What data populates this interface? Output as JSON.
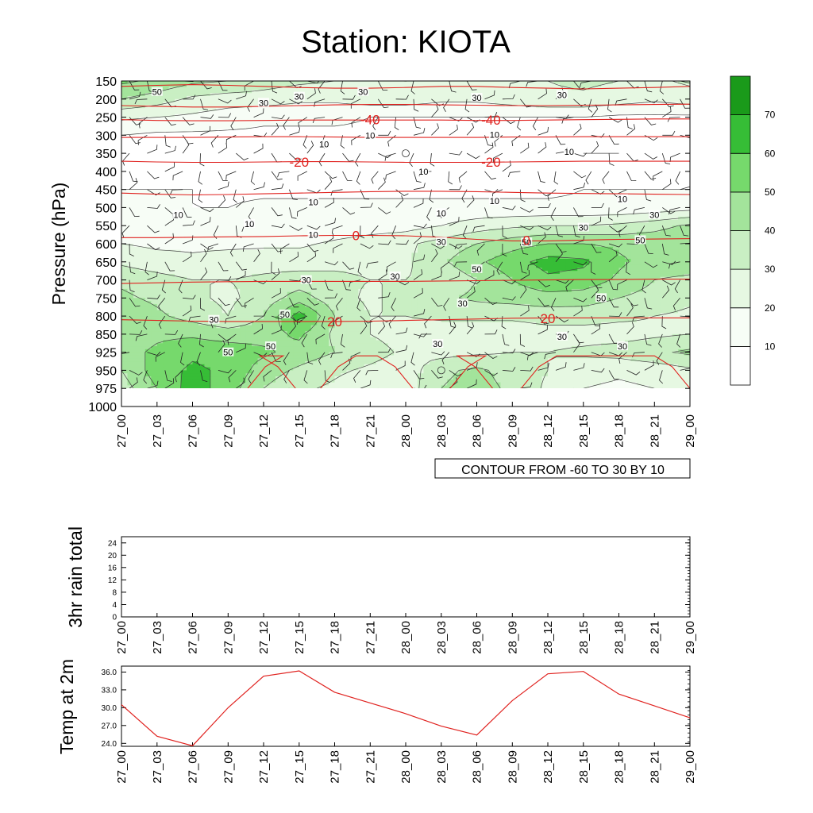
{
  "colors": {
    "fill_levels": [
      "#ffffff",
      "#f7fdf6",
      "#e6f8e2",
      "#c9efc3",
      "#a3e49b",
      "#76d96c",
      "#36bd36",
      "#1a9a1a"
    ],
    "temperature_line": "#e0221f",
    "rh_line": "#000000"
  },
  "chart_data": [
    {
      "type": "contour",
      "title": "Station: KIOTA",
      "ylabel": "Pressure (hPa)",
      "xlabel": "",
      "x_tick_labels": [
        "27_00",
        "27_03",
        "27_06",
        "27_09",
        "27_12",
        "27_15",
        "27_18",
        "27_21",
        "28_00",
        "28_03",
        "28_06",
        "28_09",
        "28_12",
        "28_15",
        "28_18",
        "28_21",
        "29_00"
      ],
      "y_tick_labels": [
        "150",
        "200",
        "250",
        "300",
        "350",
        "400",
        "450",
        "500",
        "550",
        "600",
        "650",
        "700",
        "750",
        "800",
        "850",
        "925",
        "950",
        "975",
        "1000"
      ],
      "fill_field": "relative humidity",
      "fill_levels": [
        10,
        20,
        30,
        40,
        50,
        60,
        70
      ],
      "colorbar_labels": [
        "10",
        "20",
        "30",
        "40",
        "50",
        "60",
        "70"
      ],
      "rh_grid": [
        [
          52,
          48,
          42,
          40,
          35,
          32,
          30,
          30,
          30,
          30,
          28,
          28,
          30,
          32,
          30,
          28,
          32
        ],
        [
          40,
          35,
          28,
          25,
          25,
          22,
          22,
          25,
          25,
          22,
          22,
          25,
          28,
          28,
          25,
          22,
          25
        ],
        [
          22,
          20,
          18,
          15,
          12,
          12,
          12,
          10,
          10,
          10,
          10,
          10,
          10,
          10,
          8,
          8,
          8
        ],
        [
          10,
          8,
          8,
          8,
          8,
          8,
          8,
          8,
          8,
          8,
          8,
          8,
          8,
          8,
          8,
          8,
          8
        ],
        [
          8,
          8,
          8,
          8,
          8,
          8,
          8,
          8,
          8,
          8,
          8,
          8,
          8,
          10,
          10,
          8,
          8
        ],
        [
          8,
          8,
          8,
          8,
          8,
          8,
          8,
          8,
          6,
          6,
          8,
          8,
          8,
          8,
          8,
          8,
          8
        ],
        [
          10,
          10,
          10,
          8,
          8,
          8,
          8,
          8,
          8,
          8,
          8,
          8,
          8,
          10,
          10,
          10,
          10
        ],
        [
          12,
          12,
          10,
          10,
          12,
          12,
          12,
          12,
          12,
          12,
          12,
          12,
          12,
          12,
          12,
          14,
          16
        ],
        [
          15,
          12,
          12,
          12,
          12,
          10,
          12,
          14,
          16,
          20,
          25,
          28,
          30,
          30,
          32,
          36,
          42
        ],
        [
          20,
          18,
          18,
          18,
          18,
          18,
          22,
          26,
          28,
          34,
          40,
          46,
          50,
          50,
          48,
          48,
          50
        ],
        [
          28,
          24,
          22,
          24,
          26,
          26,
          28,
          28,
          28,
          38,
          48,
          56,
          64,
          62,
          52,
          45,
          45
        ],
        [
          38,
          34,
          30,
          30,
          32,
          34,
          32,
          30,
          30,
          32,
          40,
          50,
          58,
          56,
          48,
          40,
          38
        ],
        [
          42,
          38,
          32,
          28,
          34,
          45,
          34,
          28,
          34,
          38,
          42,
          44,
          46,
          45,
          40,
          36,
          32
        ],
        [
          48,
          42,
          36,
          30,
          40,
          65,
          40,
          30,
          30,
          32,
          32,
          32,
          34,
          34,
          32,
          30,
          28
        ],
        [
          44,
          48,
          48,
          45,
          46,
          52,
          38,
          30,
          26,
          24,
          24,
          24,
          26,
          26,
          26,
          28,
          30
        ],
        [
          46,
          52,
          58,
          56,
          52,
          46,
          40,
          34,
          28,
          26,
          28,
          30,
          30,
          32,
          34,
          38,
          42
        ],
        [
          40,
          55,
          62,
          58,
          45,
          38,
          32,
          28,
          24,
          38,
          42,
          36,
          30,
          24,
          22,
          24,
          28
        ],
        [
          35,
          50,
          65,
          55,
          40,
          32,
          28,
          22,
          24,
          40,
          44,
          38,
          28,
          20,
          18,
          20,
          24
        ]
      ],
      "temperature_isotherms": [
        {
          "label": "-60",
          "pressure": [
            165,
            162,
            160,
            162,
            165,
            168,
            170,
            170,
            168,
            165,
            165,
            168,
            170,
            172,
            170,
            168,
            165
          ]
        },
        {
          "label": "-50",
          "pressure": [
            218,
            220,
            222,
            222,
            220,
            218,
            216,
            215,
            215,
            216,
            217,
            218,
            218,
            217,
            216,
            215,
            214
          ]
        },
        {
          "label": "-40",
          "pressure": [
            257,
            259,
            260,
            260,
            259,
            258,
            258,
            258,
            258,
            258,
            259,
            259,
            258,
            257,
            256,
            255,
            255
          ]
        },
        {
          "label": "-30",
          "pressure": [
            306,
            306,
            306,
            305,
            304,
            304,
            305,
            306,
            306,
            306,
            306,
            305,
            305,
            304,
            304,
            304,
            304
          ]
        },
        {
          "label": "-20",
          "pressure": [
            372,
            374,
            375,
            375,
            374,
            373,
            373,
            374,
            375,
            375,
            375,
            374,
            373,
            372,
            372,
            372,
            372
          ]
        },
        {
          "label": "-10",
          "pressure": [
            460,
            463,
            465,
            464,
            462,
            460,
            458,
            456,
            455,
            455,
            456,
            458,
            460,
            461,
            462,
            463,
            464
          ]
        },
        {
          "label": "0",
          "pressure": [
            583,
            583,
            582,
            581,
            580,
            578,
            577,
            577,
            578,
            582,
            588,
            592,
            592,
            590,
            588,
            587,
            586
          ]
        },
        {
          "label": "10",
          "pressure": [
            710,
            708,
            706,
            705,
            704,
            704,
            704,
            704,
            704,
            703,
            702,
            701,
            700,
            699,
            699,
            698,
            698
          ]
        },
        {
          "label": "20",
          "pressure": [
            810,
            812,
            814,
            815,
            815,
            815,
            815,
            814,
            812,
            810,
            808,
            806,
            805,
            805,
            805,
            805,
            805
          ]
        }
      ],
      "isotherm_labels": [
        {
          "text": "-40",
          "x_index": 7.0,
          "pressure": 257
        },
        {
          "text": "-40",
          "x_index": 10.4,
          "pressure": 258
        },
        {
          "text": "-20",
          "x_index": 5.0,
          "pressure": 374
        },
        {
          "text": "-20",
          "x_index": 10.4,
          "pressure": 374
        },
        {
          "text": "0",
          "x_index": 6.6,
          "pressure": 577
        },
        {
          "text": "0",
          "x_index": 11.4,
          "pressure": 590
        },
        {
          "text": "20",
          "x_index": 6.0,
          "pressure": 815
        },
        {
          "text": "20",
          "x_index": 12.0,
          "pressure": 806
        }
      ],
      "surface_isotherm_30_x_index": [
        3.55,
        4.9,
        5.6,
        8.2,
        9.25,
        10.45,
        11.25,
        16.0
      ],
      "rh_contour_labels": [
        {
          "text": "50",
          "x_index": 1.0,
          "pressure": 180
        },
        {
          "text": "30",
          "x_index": 4.0,
          "pressure": 210
        },
        {
          "text": "30",
          "x_index": 5.0,
          "pressure": 193
        },
        {
          "text": "30",
          "x_index": 6.8,
          "pressure": 180
        },
        {
          "text": "30",
          "x_index": 10.0,
          "pressure": 196
        },
        {
          "text": "30",
          "x_index": 12.4,
          "pressure": 188
        },
        {
          "text": "10",
          "x_index": 7.0,
          "pressure": 300
        },
        {
          "text": "10",
          "x_index": 5.7,
          "pressure": 325
        },
        {
          "text": "10",
          "x_index": 10.5,
          "pressure": 298
        },
        {
          "text": "10",
          "x_index": 12.6,
          "pressure": 345
        },
        {
          "text": "10",
          "x_index": 8.5,
          "pressure": 400
        },
        {
          "text": "10",
          "x_index": 5.4,
          "pressure": 485
        },
        {
          "text": "10",
          "x_index": 10.5,
          "pressure": 482
        },
        {
          "text": "10",
          "x_index": 14.1,
          "pressure": 476
        },
        {
          "text": "10",
          "x_index": 1.6,
          "pressure": 520
        },
        {
          "text": "10",
          "x_index": 3.6,
          "pressure": 545
        },
        {
          "text": "10",
          "x_index": 5.4,
          "pressure": 575
        },
        {
          "text": "10",
          "x_index": 9.0,
          "pressure": 515
        },
        {
          "text": "30",
          "x_index": 13.0,
          "pressure": 555
        },
        {
          "text": "30",
          "x_index": 15.0,
          "pressure": 520
        },
        {
          "text": "30",
          "x_index": 9.0,
          "pressure": 595
        },
        {
          "text": "50",
          "x_index": 11.4,
          "pressure": 596
        },
        {
          "text": "50",
          "x_index": 14.6,
          "pressure": 590
        },
        {
          "text": "50",
          "x_index": 10.0,
          "pressure": 670
        },
        {
          "text": "50",
          "x_index": 13.5,
          "pressure": 750
        },
        {
          "text": "30",
          "x_index": 5.2,
          "pressure": 700
        },
        {
          "text": "30",
          "x_index": 7.7,
          "pressure": 690
        },
        {
          "text": "30",
          "x_index": 9.6,
          "pressure": 765
        },
        {
          "text": "30",
          "x_index": 2.6,
          "pressure": 810
        },
        {
          "text": "50",
          "x_index": 4.6,
          "pressure": 795
        },
        {
          "text": "30",
          "x_index": 8.9,
          "pressure": 890
        },
        {
          "text": "30",
          "x_index": 12.4,
          "pressure": 860
        },
        {
          "text": "30",
          "x_index": 14.1,
          "pressure": 900
        },
        {
          "text": "50",
          "x_index": 4.2,
          "pressure": 900
        },
        {
          "text": "50",
          "x_index": 3.0,
          "pressure": 925
        }
      ],
      "calm_wind_markers": [
        {
          "x_index": 8.0,
          "pressure": 350
        },
        {
          "x_index": 9.0,
          "pressure": 950
        }
      ],
      "info_label": "CONTOUR FROM -60 TO 30 BY 10"
    },
    {
      "type": "line",
      "ylabel": "3hr rain total",
      "x_tick_labels": [
        "27_00",
        "27_03",
        "27_06",
        "27_09",
        "27_12",
        "27_15",
        "27_18",
        "27_21",
        "28_00",
        "28_03",
        "28_06",
        "28_09",
        "28_12",
        "28_15",
        "28_18",
        "28_21",
        "29_00"
      ],
      "y_tick_labels": [
        "0",
        "4",
        "8",
        "12",
        "16",
        "20",
        "24"
      ],
      "ylim": [
        0,
        26
      ],
      "values": [
        0,
        0,
        0,
        0,
        0,
        0,
        0,
        0,
        0,
        0,
        0,
        0,
        0,
        0,
        0,
        0,
        0
      ]
    },
    {
      "type": "line",
      "ylabel": "Temp at 2m",
      "x_tick_labels": [
        "27_00",
        "27_03",
        "27_06",
        "27_09",
        "27_12",
        "27_15",
        "27_18",
        "27_21",
        "28_00",
        "28_03",
        "28_06",
        "28_09",
        "28_12",
        "28_15",
        "28_18",
        "28_21",
        "29_00"
      ],
      "y_tick_labels": [
        "24.0",
        "27.0",
        "30.0",
        "33.0",
        "36.0"
      ],
      "ylim": [
        23.5,
        37.0
      ],
      "values": [
        30.5,
        25.2,
        23.6,
        30.0,
        35.3,
        36.2,
        32.6,
        30.8,
        29.0,
        26.9,
        25.4,
        31.2,
        35.7,
        36.1,
        32.3,
        30.3,
        28.3
      ]
    }
  ]
}
